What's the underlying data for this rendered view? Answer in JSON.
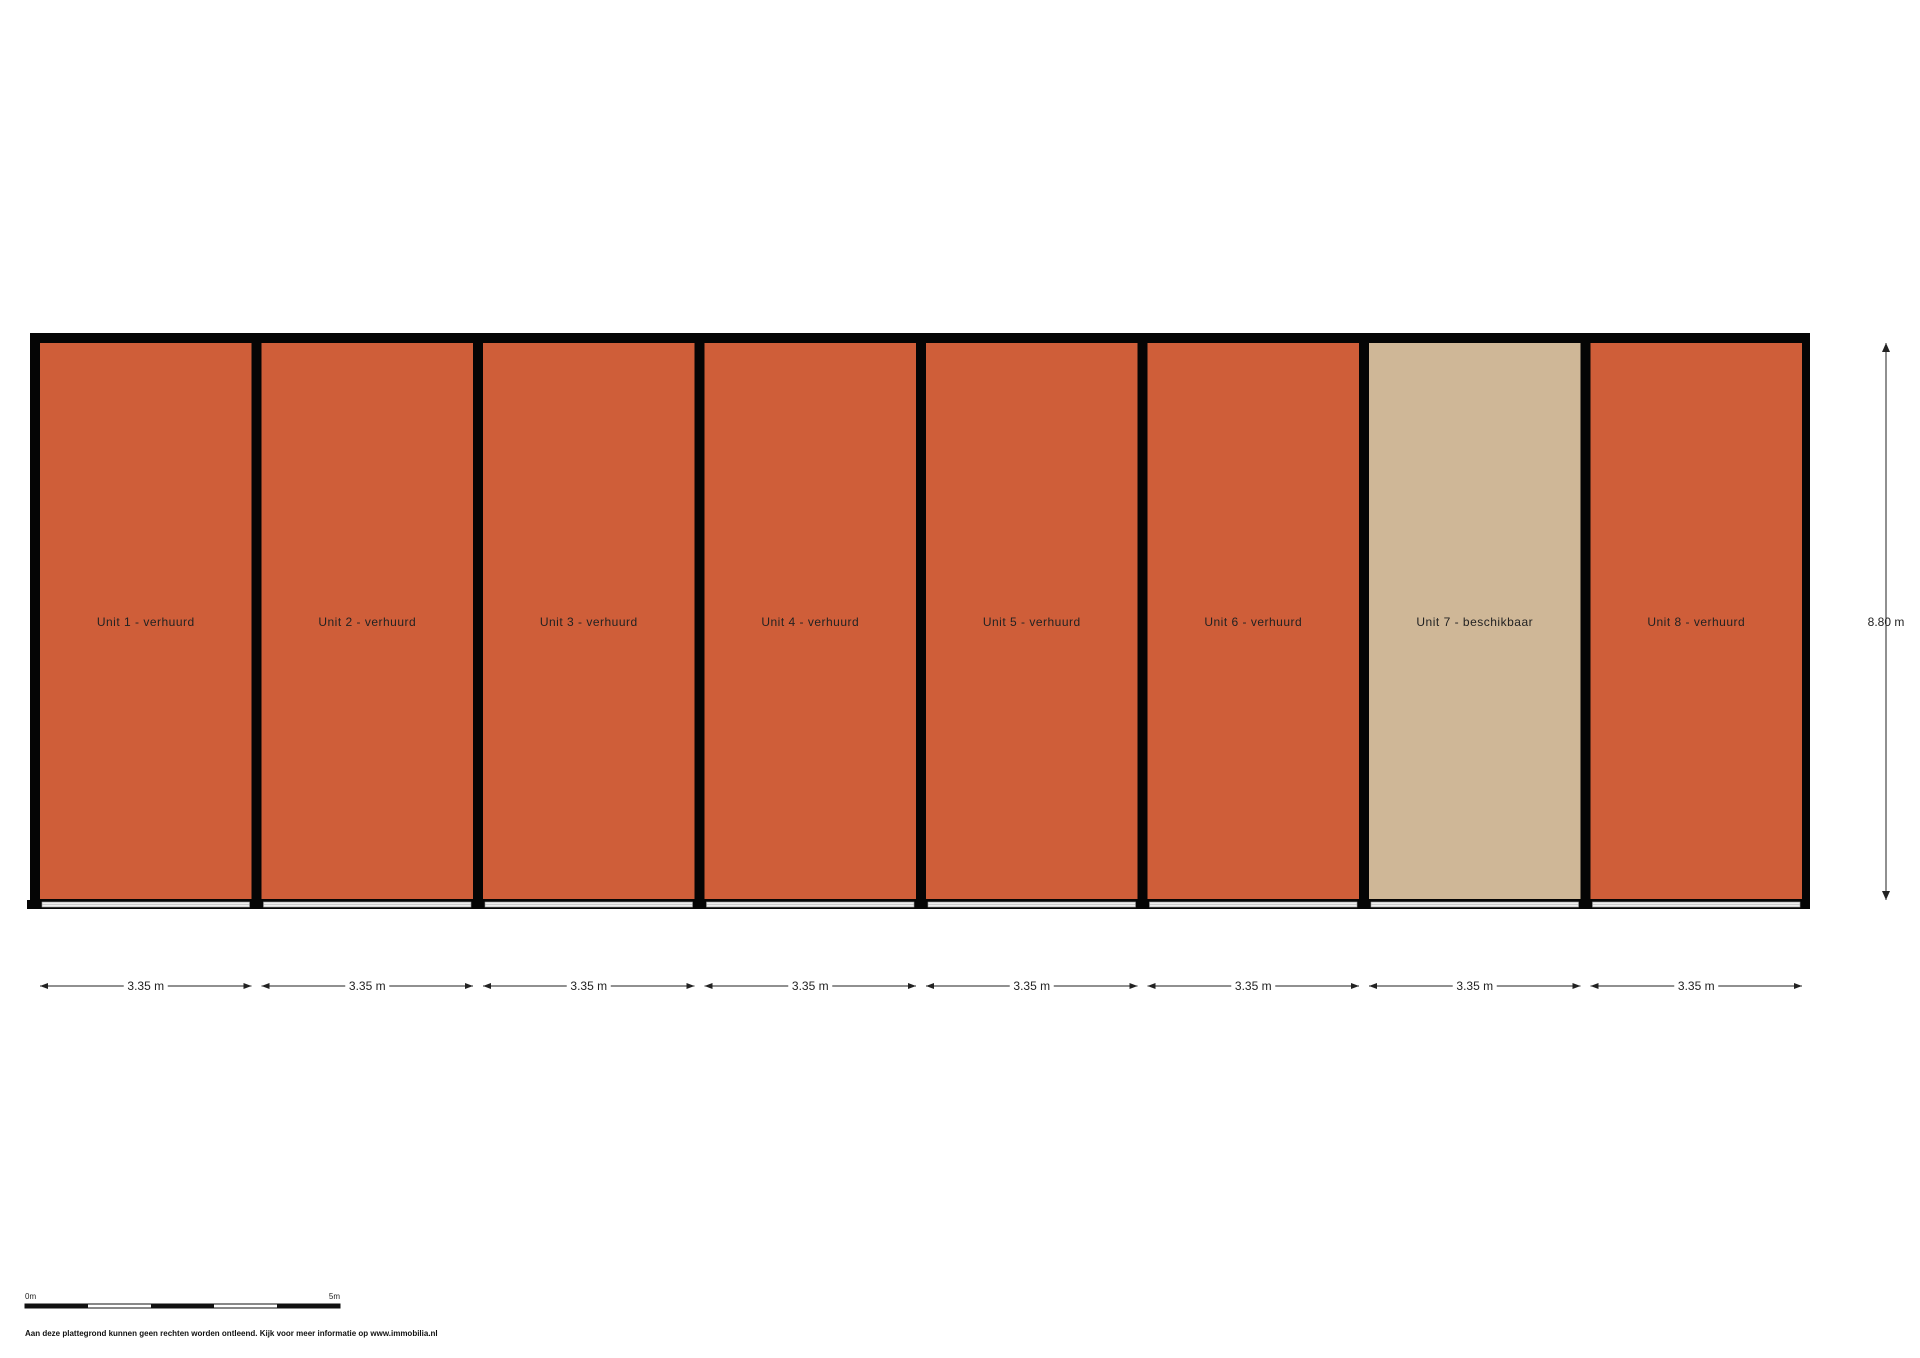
{
  "colors": {
    "rented": "#cf5e39",
    "available": "#cfb797",
    "wall": "#050505",
    "window": "#eeeeee"
  },
  "units": [
    {
      "label": "Unit 1 - verhuurd",
      "status": "rented",
      "width_label": "3.35 m"
    },
    {
      "label": "Unit 2 - verhuurd",
      "status": "rented",
      "width_label": "3.35 m"
    },
    {
      "label": "Unit 3 - verhuurd",
      "status": "rented",
      "width_label": "3.35 m"
    },
    {
      "label": "Unit 4 - verhuurd",
      "status": "rented",
      "width_label": "3.35 m"
    },
    {
      "label": "Unit 5 - verhuurd",
      "status": "rented",
      "width_label": "3.35 m"
    },
    {
      "label": "Unit 6 - verhuurd",
      "status": "rented",
      "width_label": "3.35 m"
    },
    {
      "label": "Unit 7 - beschikbaar",
      "status": "available",
      "width_label": "3.35 m"
    },
    {
      "label": "Unit 8 - verhuurd",
      "status": "rented",
      "width_label": "3.35 m"
    }
  ],
  "depth_label": "8.80 m",
  "scale_bar": {
    "start_label": "0m",
    "end_label": "5m"
  },
  "disclaimer": "Aan deze plattegrond kunnen geen rechten worden ontleend. Kijk voor meer informatie op www.immobilia.nl"
}
